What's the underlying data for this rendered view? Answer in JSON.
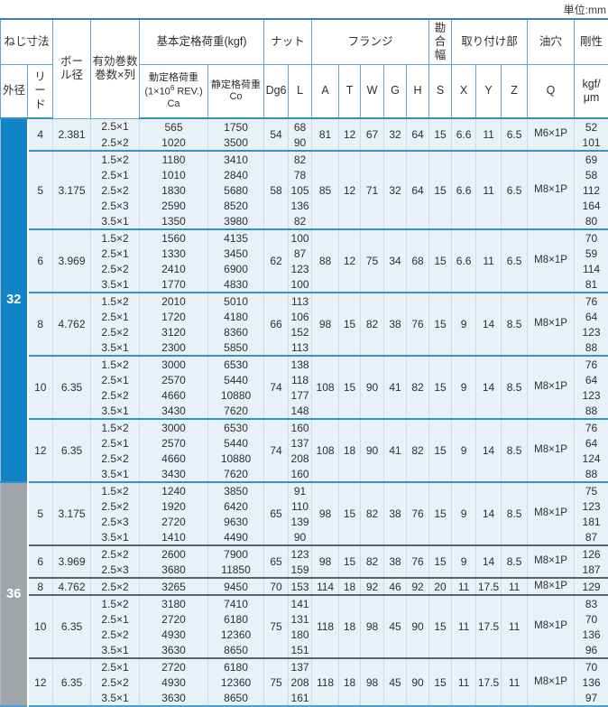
{
  "unit_label": "単位:mm",
  "colors": {
    "band_blue": "#1183c7",
    "band_gray": "#a0a5a8",
    "sep_blue": "#2f95c8",
    "sep_dark": "#5d6266",
    "cell_bg": "#e8f1f8"
  },
  "table": {
    "h": {
      "screw_dim": "ねじ寸法",
      "outer_dia": "外径",
      "lead_c1": "リ",
      "lead_c2": "ー",
      "lead_c3": "ド",
      "ball_l1": "ボー",
      "ball_l2": "ル径",
      "turns_l1": "有効巻数",
      "turns_l2": "巻数×列",
      "load_group": "基本定格荷重(kgf)",
      "ca_l1": "動定格荷重",
      "ca_l2a": "(1×10",
      "ca_sup": "6",
      "ca_l2b": " REV.)",
      "ca_l3": "Ca",
      "co_l1": "静定格荷重",
      "co_l2": "Co",
      "nut": "ナット",
      "dg6": "Dg6",
      "l": "L",
      "flange": "フランジ",
      "a": "A",
      "t": "T",
      "w": "W",
      "g": "G",
      "hh": "H",
      "fit_c1": "勘",
      "fit_c2": "合",
      "fit_c3": "幅",
      "s": "S",
      "mounting": "取り付け部",
      "x": "X",
      "y": "Y",
      "z": "Z",
      "oil_hole": "油穴",
      "q": "Q",
      "rigidity": "剛性",
      "rig_u1": "kgf/",
      "rig_u2": "μm"
    },
    "groups": [
      {
        "label": "32",
        "band_color": "#1183c7",
        "sep": "blue",
        "blocks": [
          {
            "lead": "4",
            "ball": "2.381",
            "dg6": "54",
            "A": "81",
            "T": "12",
            "W": "67",
            "G": "32",
            "H": "64",
            "S": "15",
            "X": "6.6",
            "Y": "11",
            "Z": "6.5",
            "Q": "M6×1P",
            "rows": [
              [
                "2.5×1",
                "565",
                "1750",
                "68",
                "52"
              ],
              [
                "2.5×2",
                "1020",
                "3500",
                "90",
                "101"
              ]
            ]
          },
          {
            "lead": "5",
            "ball": "3.175",
            "dg6": "58",
            "A": "85",
            "T": "12",
            "W": "71",
            "G": "32",
            "H": "64",
            "S": "15",
            "X": "6.6",
            "Y": "11",
            "Z": "6.5",
            "Q": "M8×1P",
            "rows": [
              [
                "1.5×2",
                "1180",
                "3410",
                "82",
                "69"
              ],
              [
                "2.5×1",
                "1010",
                "2840",
                "78",
                "58"
              ],
              [
                "2.5×2",
                "1830",
                "5680",
                "105",
                "112"
              ],
              [
                "2.5×3",
                "2590",
                "8520",
                "136",
                "164"
              ],
              [
                "3.5×1",
                "1350",
                "3980",
                "82",
                "80"
              ]
            ]
          },
          {
            "lead": "6",
            "ball": "3.969",
            "dg6": "62",
            "A": "88",
            "T": "12",
            "W": "75",
            "G": "34",
            "H": "68",
            "S": "15",
            "X": "6.6",
            "Y": "11",
            "Z": "6.5",
            "Q": "M8×1P",
            "rows": [
              [
                "1.5×2",
                "1560",
                "4135",
                "100",
                "70"
              ],
              [
                "2.5×1",
                "1330",
                "3450",
                "87",
                "59"
              ],
              [
                "2.5×2",
                "2410",
                "6900",
                "123",
                "114"
              ],
              [
                "3.5×1",
                "1770",
                "4830",
                "100",
                "81"
              ]
            ]
          },
          {
            "lead": "8",
            "ball": "4.762",
            "dg6": "66",
            "A": "98",
            "T": "15",
            "W": "82",
            "G": "38",
            "H": "76",
            "S": "15",
            "X": "9",
            "Y": "14",
            "Z": "8.5",
            "Q": "M8×1P",
            "rows": [
              [
                "1.5×2",
                "2010",
                "5010",
                "113",
                "76"
              ],
              [
                "2.5×1",
                "1720",
                "4180",
                "106",
                "64"
              ],
              [
                "2.5×2",
                "3120",
                "8360",
                "152",
                "123"
              ],
              [
                "3.5×1",
                "2300",
                "5850",
                "113",
                "88"
              ]
            ]
          },
          {
            "lead": "10",
            "ball": "6.35",
            "dg6": "74",
            "A": "108",
            "T": "15",
            "W": "90",
            "G": "41",
            "H": "82",
            "S": "15",
            "X": "9",
            "Y": "14",
            "Z": "8.5",
            "Q": "M8×1P",
            "rows": [
              [
                "1.5×2",
                "3000",
                "6530",
                "138",
                "76"
              ],
              [
                "2.5×1",
                "2570",
                "5440",
                "118",
                "64"
              ],
              [
                "2.5×2",
                "4660",
                "10880",
                "177",
                "123"
              ],
              [
                "3.5×1",
                "3430",
                "7620",
                "148",
                "88"
              ]
            ]
          },
          {
            "lead": "12",
            "ball": "6.35",
            "dg6": "74",
            "A": "108",
            "T": "18",
            "W": "90",
            "G": "41",
            "H": "82",
            "S": "15",
            "X": "9",
            "Y": "14",
            "Z": "8.5",
            "Q": "M8×1P",
            "rows": [
              [
                "1.5×2",
                "3000",
                "6530",
                "160",
                "76"
              ],
              [
                "2.5×1",
                "2570",
                "5440",
                "137",
                "64"
              ],
              [
                "2.5×2",
                "4660",
                "10880",
                "208",
                "124"
              ],
              [
                "3.5×1",
                "3430",
                "7620",
                "160",
                "88"
              ]
            ]
          }
        ]
      },
      {
        "label": "36",
        "band_color": "#a0a5a8",
        "sep": "dark",
        "blocks": [
          {
            "lead": "5",
            "ball": "3.175",
            "dg6": "65",
            "A": "98",
            "T": "15",
            "W": "82",
            "G": "38",
            "H": "76",
            "S": "15",
            "X": "9",
            "Y": "14",
            "Z": "8.5",
            "Q": "M8×1P",
            "rows": [
              [
                "1.5×2",
                "1240",
                "3850",
                "91",
                "75"
              ],
              [
                "2.5×2",
                "1920",
                "6420",
                "110",
                "123"
              ],
              [
                "2.5×3",
                "2720",
                "9630",
                "139",
                "181"
              ],
              [
                "3.5×1",
                "1410",
                "4490",
                "90",
                "87"
              ]
            ]
          },
          {
            "lead": "6",
            "ball": "3.969",
            "dg6": "65",
            "A": "98",
            "T": "15",
            "W": "82",
            "G": "38",
            "H": "76",
            "S": "15",
            "X": "9",
            "Y": "14",
            "Z": "8.5",
            "Q": "M8×1P",
            "rows": [
              [
                "2.5×2",
                "2600",
                "7900",
                "123",
                "126"
              ],
              [
                "2.5×3",
                "3680",
                "11850",
                "159",
                "187"
              ]
            ]
          },
          {
            "lead": "8",
            "ball": "4.762",
            "dg6": "70",
            "A": "114",
            "T": "18",
            "W": "92",
            "G": "46",
            "H": "92",
            "S": "20",
            "X": "11",
            "Y": "17.5",
            "Z": "11",
            "Q": "M8×1P",
            "rows": [
              [
                "2.5×2",
                "3265",
                "9450",
                "153",
                "129"
              ]
            ]
          },
          {
            "lead": "10",
            "ball": "6.35",
            "dg6": "75",
            "A": "118",
            "T": "18",
            "W": "98",
            "G": "45",
            "H": "90",
            "S": "15",
            "X": "11",
            "Y": "17.5",
            "Z": "11",
            "Q": "M8×1P",
            "rows": [
              [
                "1.5×2",
                "3180",
                "7410",
                "141",
                "83"
              ],
              [
                "2.5×1",
                "2720",
                "6180",
                "131",
                "70"
              ],
              [
                "2.5×2",
                "4930",
                "12360",
                "180",
                "136"
              ],
              [
                "3.5×1",
                "3630",
                "8650",
                "151",
                "96"
              ]
            ]
          },
          {
            "lead": "12",
            "ball": "6.35",
            "dg6": "75",
            "A": "118",
            "T": "18",
            "W": "98",
            "G": "45",
            "H": "90",
            "S": "15",
            "X": "11",
            "Y": "17.5",
            "Z": "11",
            "Q": "M8×1P",
            "rows": [
              [
                "2.5×1",
                "2720",
                "6180",
                "137",
                "70"
              ],
              [
                "2.5×2",
                "4930",
                "12360",
                "208",
                "136"
              ],
              [
                "3.5×1",
                "3630",
                "8650",
                "161",
                "97"
              ]
            ]
          }
        ]
      }
    ]
  }
}
